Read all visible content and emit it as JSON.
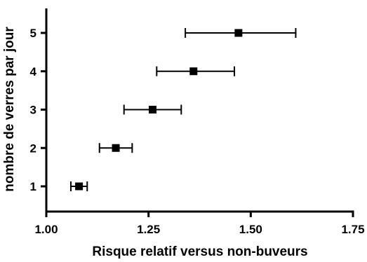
{
  "chart_data": {
    "type": "scatter",
    "subtype": "forest-plot-with-error-bars",
    "title": "",
    "xlabel": "Risque relatif versus non-buveurs",
    "ylabel": "nombre de verres par jour",
    "xlim": [
      1.0,
      1.75
    ],
    "ylim": [
      0.5,
      5.5
    ],
    "x_ticks": [
      "1.00",
      "1.25",
      "1.50",
      "1.75"
    ],
    "y_ticks": [
      "1",
      "2",
      "3",
      "4",
      "5"
    ],
    "grid": false,
    "points": [
      {
        "y": 1,
        "x": 1.08,
        "x_low": 1.06,
        "x_high": 1.1
      },
      {
        "y": 2,
        "x": 1.17,
        "x_low": 1.13,
        "x_high": 1.21
      },
      {
        "y": 3,
        "x": 1.26,
        "x_low": 1.19,
        "x_high": 1.33
      },
      {
        "y": 4,
        "x": 1.36,
        "x_low": 1.27,
        "x_high": 1.46
      },
      {
        "y": 5,
        "x": 1.47,
        "x_low": 1.34,
        "x_high": 1.61
      }
    ],
    "marker_color": "#000000"
  }
}
